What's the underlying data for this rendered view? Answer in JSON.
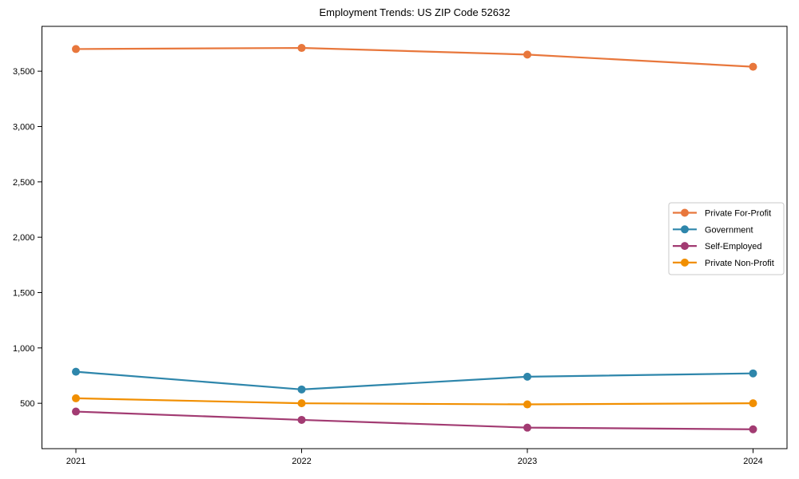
{
  "chart_data": {
    "type": "line",
    "title": "Employment Trends: US ZIP Code 52632",
    "xlabel": "",
    "ylabel": "",
    "x": [
      2021,
      2022,
      2023,
      2024
    ],
    "x_tick_labels": [
      "2021",
      "2022",
      "2023",
      "2024"
    ],
    "series": [
      {
        "name": "Private For-Profit",
        "color": "#E8773C",
        "values": [
          3700,
          3710,
          3650,
          3540
        ]
      },
      {
        "name": "Government",
        "color": "#2E86AB",
        "values": [
          785,
          625,
          740,
          770
        ]
      },
      {
        "name": "Self-Employed",
        "color": "#A23B72",
        "values": [
          425,
          350,
          280,
          265
        ]
      },
      {
        "name": "Private Non-Profit",
        "color": "#F18F01",
        "values": [
          545,
          500,
          490,
          500
        ]
      }
    ],
    "yticks": [
      500,
      1000,
      1500,
      2000,
      2500,
      3000,
      3500
    ],
    "ytick_labels": [
      "500",
      "1,000",
      "1,500",
      "2,000",
      "2,500",
      "3,000",
      "3,500"
    ],
    "ylim": [
      90,
      3905
    ],
    "grid": false,
    "legend_position": "center right",
    "marker": "circle",
    "background_color": "#ffffff",
    "spine_color": "#000000",
    "legend_border_color": "#c9c9c9"
  }
}
